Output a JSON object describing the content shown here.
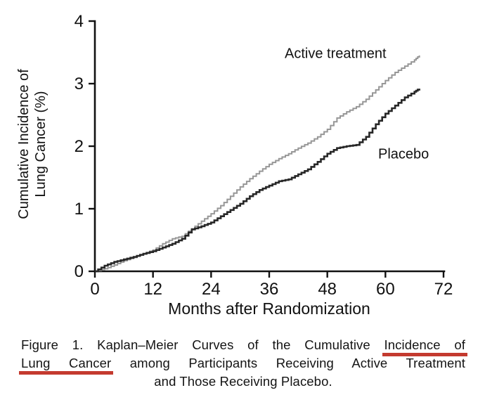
{
  "figure": {
    "caption": {
      "line1_pre": "Figure 1. Kaplan–Meier Curves of the Cumulative ",
      "line1_underlined": "Incidence of",
      "line2_underlined": "Lung Cancer",
      "line2_post": " among Participants Receiving Active Treatment",
      "line3": "and Those Receiving Placebo.",
      "underline_color": "#c43a2f"
    }
  },
  "chart_data": {
    "type": "line",
    "subtype": "kaplan-meier-step",
    "title": "",
    "xlabel": "Months after Randomization",
    "ylabel": "Cumulative Incidence of Lung Cancer (%)",
    "ylabel_lines": [
      "Cumulative Incidence of",
      "Lung Cancer (%)"
    ],
    "xlim": [
      0,
      72
    ],
    "ylim": [
      0,
      4
    ],
    "xticks": [
      0,
      12,
      24,
      36,
      48,
      60,
      72
    ],
    "yticks": [
      0,
      1,
      2,
      3,
      4
    ],
    "grid": false,
    "legend_position": "inline-annotations",
    "axis_color": "#111111",
    "series": [
      {
        "name": "Active treatment",
        "color": "#979797",
        "stroke_width": 2,
        "label_anchor": "start",
        "label_x": 39.2,
        "label_y": 3.49,
        "x": [
          0,
          2,
          4,
          6,
          8,
          10,
          12,
          14,
          16,
          18,
          20,
          22,
          24,
          26,
          28,
          30,
          32,
          34,
          36,
          38,
          40,
          42,
          44,
          46,
          48,
          50,
          52,
          54,
          56,
          58,
          60,
          62,
          64,
          66,
          67
        ],
        "y": [
          0,
          0.04,
          0.1,
          0.17,
          0.22,
          0.28,
          0.34,
          0.44,
          0.52,
          0.56,
          0.68,
          0.8,
          0.92,
          1.05,
          1.2,
          1.35,
          1.48,
          1.6,
          1.71,
          1.8,
          1.88,
          1.97,
          2.05,
          2.15,
          2.27,
          2.45,
          2.55,
          2.63,
          2.75,
          2.9,
          3.05,
          3.18,
          3.28,
          3.38,
          3.45
        ]
      },
      {
        "name": "Placebo",
        "color": "#272727",
        "stroke_width": 2.6,
        "label_anchor": "start",
        "label_x": 58.5,
        "label_y": 1.88,
        "x": [
          0,
          2,
          4,
          6,
          8,
          10,
          12,
          14,
          16,
          18,
          20,
          22,
          24,
          26,
          28,
          30,
          32,
          34,
          36,
          38,
          40,
          42,
          44,
          46,
          48,
          50,
          52,
          54,
          56,
          58,
          60,
          62,
          64,
          66,
          67
        ],
        "y": [
          0,
          0.09,
          0.15,
          0.19,
          0.23,
          0.28,
          0.32,
          0.38,
          0.44,
          0.52,
          0.67,
          0.72,
          0.78,
          0.88,
          0.98,
          1.08,
          1.2,
          1.3,
          1.37,
          1.44,
          1.47,
          1.55,
          1.63,
          1.75,
          1.88,
          1.97,
          2.0,
          2.02,
          2.15,
          2.35,
          2.52,
          2.65,
          2.78,
          2.87,
          2.92
        ]
      }
    ]
  }
}
